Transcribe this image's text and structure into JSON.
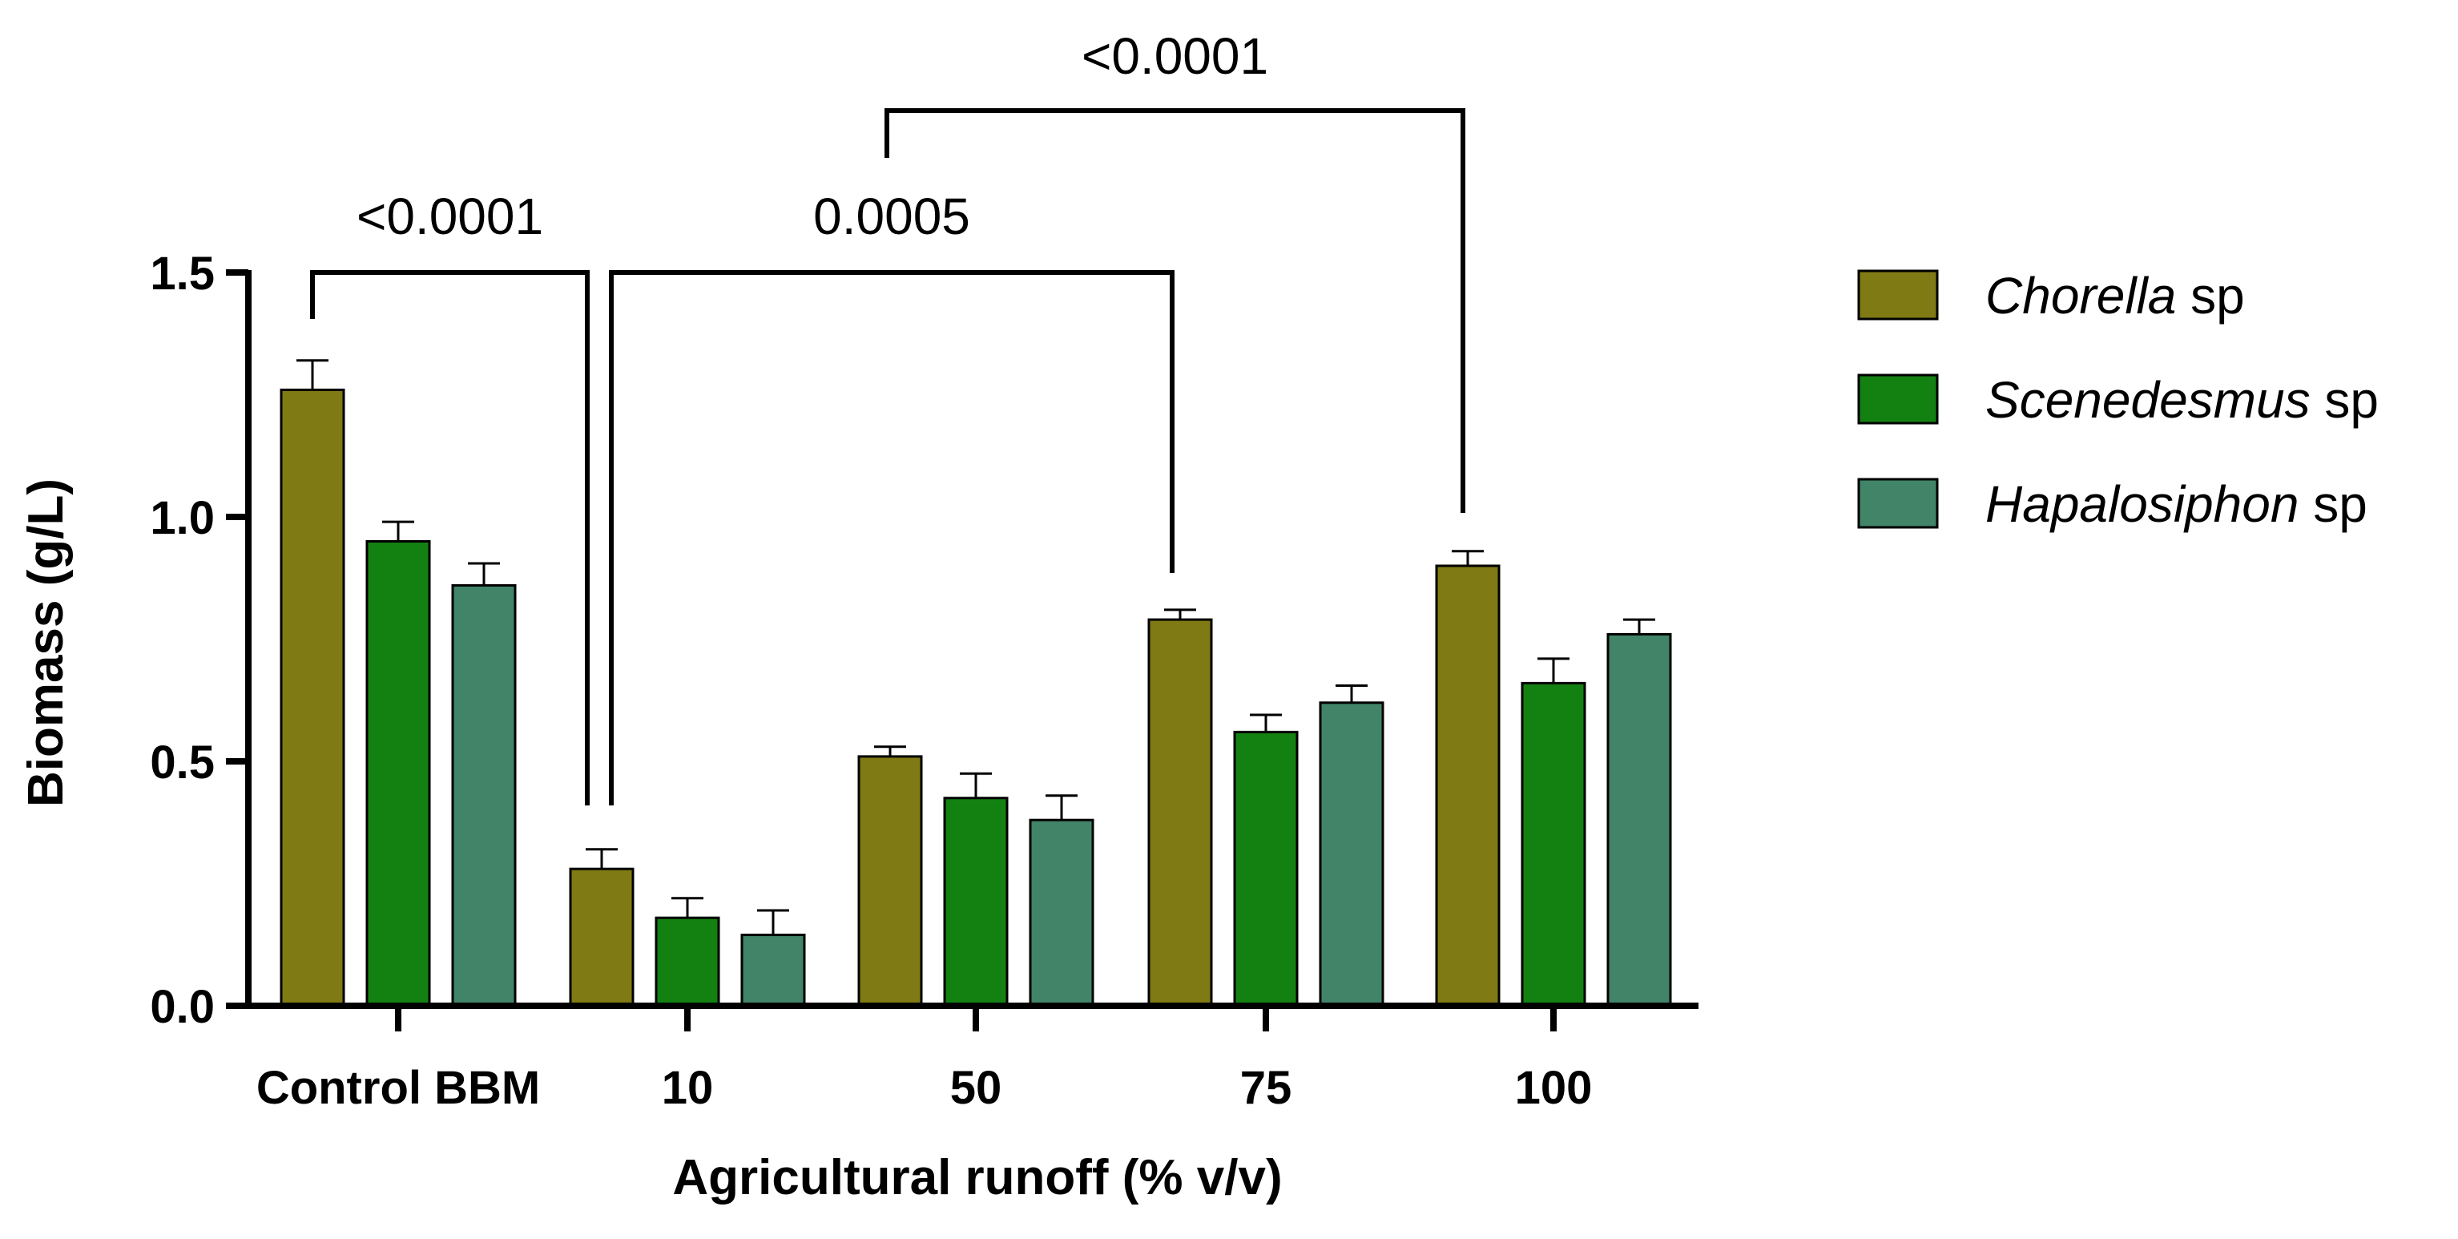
{
  "chart_data": {
    "type": "bar",
    "xlabel": "Agricultural runoff (% v/v)",
    "ylabel": "Biomass (g/L)",
    "categories": [
      "Control BBM",
      "10",
      "50",
      "75",
      "100"
    ],
    "ylim": [
      0,
      1.5
    ],
    "yticks": [
      "0.0",
      "0.5",
      "1.0",
      "1.5"
    ],
    "yticks_values": [
      0,
      0.5,
      1.0,
      1.5
    ],
    "series": [
      {
        "name_italic": "Chorella",
        "name_suffix": " sp",
        "color": "#7f7a14",
        "values": [
          1.26,
          0.28,
          0.51,
          0.79,
          0.9
        ],
        "errors": [
          0.06,
          0.04,
          0.02,
          0.02,
          0.03
        ]
      },
      {
        "name_italic": "Scenedesmus",
        "name_suffix": " sp",
        "color": "#138112",
        "values": [
          0.95,
          0.18,
          0.425,
          0.56,
          0.66
        ],
        "errors": [
          0.04,
          0.04,
          0.05,
          0.035,
          0.05
        ]
      },
      {
        "name_italic": "Hapalosiphon",
        "name_suffix": " sp",
        "color": "#418468",
        "values": [
          0.86,
          0.145,
          0.38,
          0.62,
          0.76
        ],
        "errors": [
          0.045,
          0.05,
          0.05,
          0.035,
          0.03
        ]
      }
    ],
    "significance": [
      {
        "label": "<0.0001",
        "from_category": 0,
        "from_series": 0,
        "to_category": 1,
        "to_series": 0
      },
      {
        "label": "0.0005",
        "from_category": 1,
        "from_series": 0,
        "to_category": 3,
        "to_series": 0
      },
      {
        "label": "<0.0001",
        "from_category": 1,
        "from_series": 0,
        "to_category": 4,
        "to_series": 0
      }
    ],
    "legend_position": "right",
    "grid": false
  }
}
